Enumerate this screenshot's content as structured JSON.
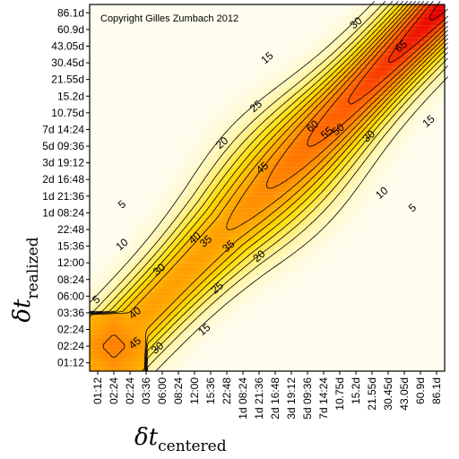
{
  "chart_data": {
    "type": "heatmap",
    "annotation": "Copyright Gilles Zumbach 2012",
    "xlabel": {
      "symbol": "δt",
      "subscript": "centered"
    },
    "ylabel": {
      "symbol": "δt",
      "subscript": "realized"
    },
    "xticks": [
      "01:12",
      "02:24",
      "02:24",
      "03:36",
      "06:00",
      "08:24",
      "12:00",
      "15:36",
      "22:48",
      "1d 08:24",
      "1d 21:36",
      "2d 16:48",
      "3d 19:12",
      "5d 09:36",
      "7d 14:24",
      "10.75d",
      "15.2d",
      "21.55d",
      "30.45d",
      "43.05d",
      "60.9d",
      "86.1d"
    ],
    "yticks": [
      "01:12",
      "02:24",
      "02:24",
      "03:36",
      "06:00",
      "08:24",
      "12:00",
      "15:36",
      "22:48",
      "1d 08:24",
      "1d 21:36",
      "2d 16:48",
      "3d 19:12",
      "5d 09:36",
      "7d 14:24",
      "10.75d",
      "15.2d",
      "21.55d",
      "30.45d",
      "43.05d",
      "60.9d",
      "86.1d"
    ],
    "contour_levels": [
      5,
      10,
      15,
      20,
      25,
      30,
      35,
      40,
      45,
      50,
      55,
      60,
      65
    ],
    "contour_labels": [
      {
        "text": "30",
        "i": 16.0,
        "j": 20.4
      },
      {
        "text": "65",
        "i": 18.8,
        "j": 19.0
      },
      {
        "text": "15",
        "i": 10.5,
        "j": 18.3
      },
      {
        "text": "25",
        "i": 9.8,
        "j": 15.4
      },
      {
        "text": "60",
        "i": 13.3,
        "j": 14.2
      },
      {
        "text": "55",
        "i": 14.2,
        "j": 13.8
      },
      {
        "text": "50",
        "i": 14.9,
        "j": 14.0
      },
      {
        "text": "15",
        "i": 20.5,
        "j": 14.5
      },
      {
        "text": "30",
        "i": 16.8,
        "j": 13.6
      },
      {
        "text": "20",
        "i": 7.7,
        "j": 13.2
      },
      {
        "text": "45",
        "i": 10.2,
        "j": 11.7
      },
      {
        "text": "10",
        "i": 17.6,
        "j": 10.2
      },
      {
        "text": "5",
        "i": 1.5,
        "j": 9.5
      },
      {
        "text": "5",
        "i": 19.5,
        "j": 9.3
      },
      {
        "text": "35",
        "i": 6.7,
        "j": 7.3
      },
      {
        "text": "40",
        "i": 6.0,
        "j": 7.5
      },
      {
        "text": "35",
        "i": 8.1,
        "j": 7.0
      },
      {
        "text": "10",
        "i": 1.5,
        "j": 7.1
      },
      {
        "text": "20",
        "i": 10.0,
        "j": 6.4
      },
      {
        "text": "30",
        "i": 3.8,
        "j": 5.6
      },
      {
        "text": "25",
        "i": 7.4,
        "j": 4.5
      },
      {
        "text": "5",
        "i": -0.1,
        "j": 3.8
      },
      {
        "text": "40",
        "i": 2.3,
        "j": 3.0
      },
      {
        "text": "15",
        "i": 6.6,
        "j": 2.0
      },
      {
        "text": "45",
        "i": 2.3,
        "j": 1.2
      },
      {
        "text": "30",
        "i": 3.7,
        "j": 0.9
      }
    ],
    "colors": {
      "low": "#fffdf0",
      "mid_low": "#fff4a0",
      "mid": "#ffdd00",
      "mid_high": "#ff9f00",
      "high": "#ff5a00",
      "peak": "#e80000",
      "contour": "#000000"
    }
  }
}
